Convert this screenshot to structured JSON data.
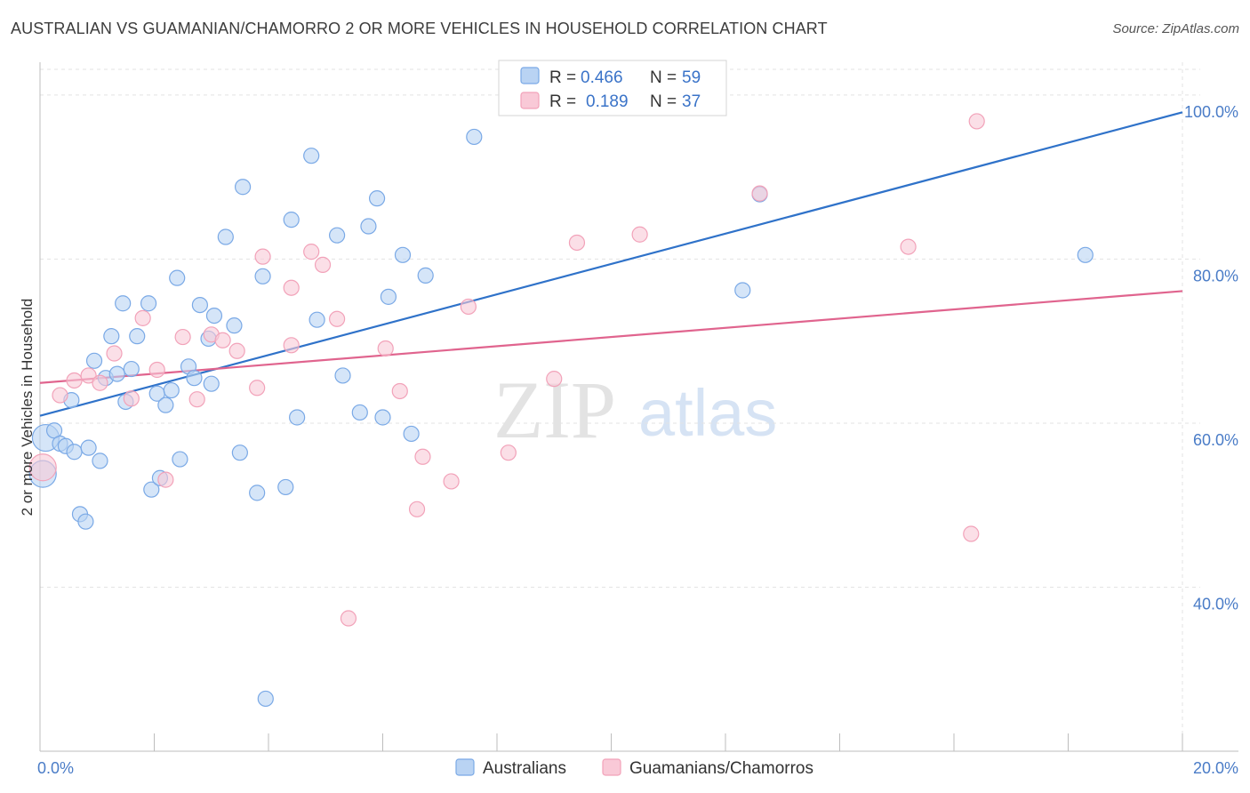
{
  "title": "AUSTRALIAN VS GUAMANIAN/CHAMORRO 2 OR MORE VEHICLES IN HOUSEHOLD CORRELATION CHART",
  "source": "Source: ZipAtlas.com",
  "watermark": {
    "zip": "ZIP",
    "atlas": "atlas"
  },
  "legend": {
    "rows": [
      {
        "r_label": "R =",
        "r_value": "0.466",
        "n_label": "N =",
        "n_value": "59"
      },
      {
        "r_label": "R =",
        "r_value": "0.189",
        "n_label": "N =",
        "n_value": "37"
      }
    ]
  },
  "chart_data": {
    "type": "scatter",
    "xlabel": "",
    "ylabel": "2 or more Vehicles in Household",
    "xlim": [
      0,
      20
    ],
    "ylim": [
      20,
      104
    ],
    "x_ticks": [
      {
        "value": 0,
        "label": "0.0%"
      },
      {
        "value": 20,
        "label": "20.0%"
      }
    ],
    "y_ticks": [
      {
        "value": 40,
        "label": "40.0%"
      },
      {
        "value": 60,
        "label": "60.0%"
      },
      {
        "value": 80,
        "label": "80.0%"
      },
      {
        "value": 100,
        "label": "100.0%"
      }
    ],
    "grid": true,
    "legend_position": "top-center",
    "series": [
      {
        "name": "Australians",
        "color": "#7aa9e6",
        "fill": "#b9d3f3",
        "line_color": "#2f72c9",
        "r": 0.466,
        "n": 59,
        "trend": [
          [
            0,
            60.9
          ],
          [
            20,
            97.9
          ]
        ],
        "points": [
          [
            0.05,
            53.8
          ],
          [
            0.1,
            58.2
          ],
          [
            0.25,
            59.1
          ],
          [
            0.35,
            57.5
          ],
          [
            0.45,
            57.2
          ],
          [
            0.55,
            62.8
          ],
          [
            0.6,
            56.5
          ],
          [
            0.7,
            48.9
          ],
          [
            0.8,
            48.0
          ],
          [
            0.85,
            57.0
          ],
          [
            0.95,
            67.6
          ],
          [
            1.05,
            55.4
          ],
          [
            1.15,
            65.5
          ],
          [
            1.25,
            70.6
          ],
          [
            1.35,
            66.0
          ],
          [
            1.45,
            74.6
          ],
          [
            1.5,
            62.6
          ],
          [
            1.6,
            66.6
          ],
          [
            1.7,
            70.6
          ],
          [
            1.9,
            74.6
          ],
          [
            1.95,
            51.9
          ],
          [
            2.05,
            63.6
          ],
          [
            2.1,
            53.3
          ],
          [
            2.2,
            62.2
          ],
          [
            2.3,
            64.0
          ],
          [
            2.4,
            77.7
          ],
          [
            2.45,
            55.6
          ],
          [
            2.6,
            66.9
          ],
          [
            2.7,
            65.5
          ],
          [
            2.8,
            74.4
          ],
          [
            2.95,
            70.3
          ],
          [
            3.0,
            64.8
          ],
          [
            3.05,
            73.1
          ],
          [
            3.25,
            82.7
          ],
          [
            3.4,
            71.9
          ],
          [
            3.5,
            56.4
          ],
          [
            3.55,
            88.8
          ],
          [
            3.8,
            51.5
          ],
          [
            3.9,
            77.9
          ],
          [
            3.95,
            26.4
          ],
          [
            4.3,
            52.2
          ],
          [
            4.4,
            84.8
          ],
          [
            4.5,
            60.7
          ],
          [
            4.75,
            92.6
          ],
          [
            4.85,
            72.6
          ],
          [
            5.2,
            82.9
          ],
          [
            5.3,
            65.8
          ],
          [
            5.6,
            61.3
          ],
          [
            5.75,
            84.0
          ],
          [
            5.9,
            87.4
          ],
          [
            6.0,
            60.7
          ],
          [
            6.1,
            75.4
          ],
          [
            6.35,
            80.5
          ],
          [
            6.5,
            58.7
          ],
          [
            6.75,
            78.0
          ],
          [
            7.6,
            94.9
          ],
          [
            12.3,
            76.2
          ],
          [
            12.6,
            87.9
          ],
          [
            18.3,
            80.5
          ]
        ]
      },
      {
        "name": "Guamanians/Chamorros",
        "color": "#f2a2b9",
        "fill": "#f9c9d7",
        "line_color": "#e0648e",
        "r": 0.189,
        "n": 37,
        "trend": [
          [
            0,
            64.9
          ],
          [
            20,
            76.1
          ]
        ],
        "points": [
          [
            0.05,
            54.6
          ],
          [
            0.35,
            63.4
          ],
          [
            0.6,
            65.2
          ],
          [
            0.85,
            65.8
          ],
          [
            1.05,
            64.9
          ],
          [
            1.3,
            68.5
          ],
          [
            1.6,
            63.0
          ],
          [
            1.8,
            72.8
          ],
          [
            2.05,
            66.5
          ],
          [
            2.2,
            53.1
          ],
          [
            2.5,
            70.5
          ],
          [
            2.75,
            62.9
          ],
          [
            3.0,
            70.8
          ],
          [
            3.2,
            70.1
          ],
          [
            3.45,
            68.8
          ],
          [
            3.8,
            64.3
          ],
          [
            3.9,
            80.3
          ],
          [
            4.4,
            69.5
          ],
          [
            4.4,
            76.5
          ],
          [
            4.75,
            80.9
          ],
          [
            4.95,
            79.3
          ],
          [
            5.2,
            72.7
          ],
          [
            5.4,
            36.2
          ],
          [
            6.05,
            69.1
          ],
          [
            6.3,
            63.9
          ],
          [
            6.6,
            49.5
          ],
          [
            6.7,
            55.9
          ],
          [
            7.2,
            52.9
          ],
          [
            7.5,
            74.2
          ],
          [
            8.2,
            56.4
          ],
          [
            9.0,
            65.4
          ],
          [
            9.4,
            82.0
          ],
          [
            10.5,
            83.0
          ],
          [
            12.6,
            88.0
          ],
          [
            15.2,
            81.5
          ],
          [
            16.3,
            46.5
          ],
          [
            16.4,
            96.8
          ]
        ]
      }
    ]
  }
}
